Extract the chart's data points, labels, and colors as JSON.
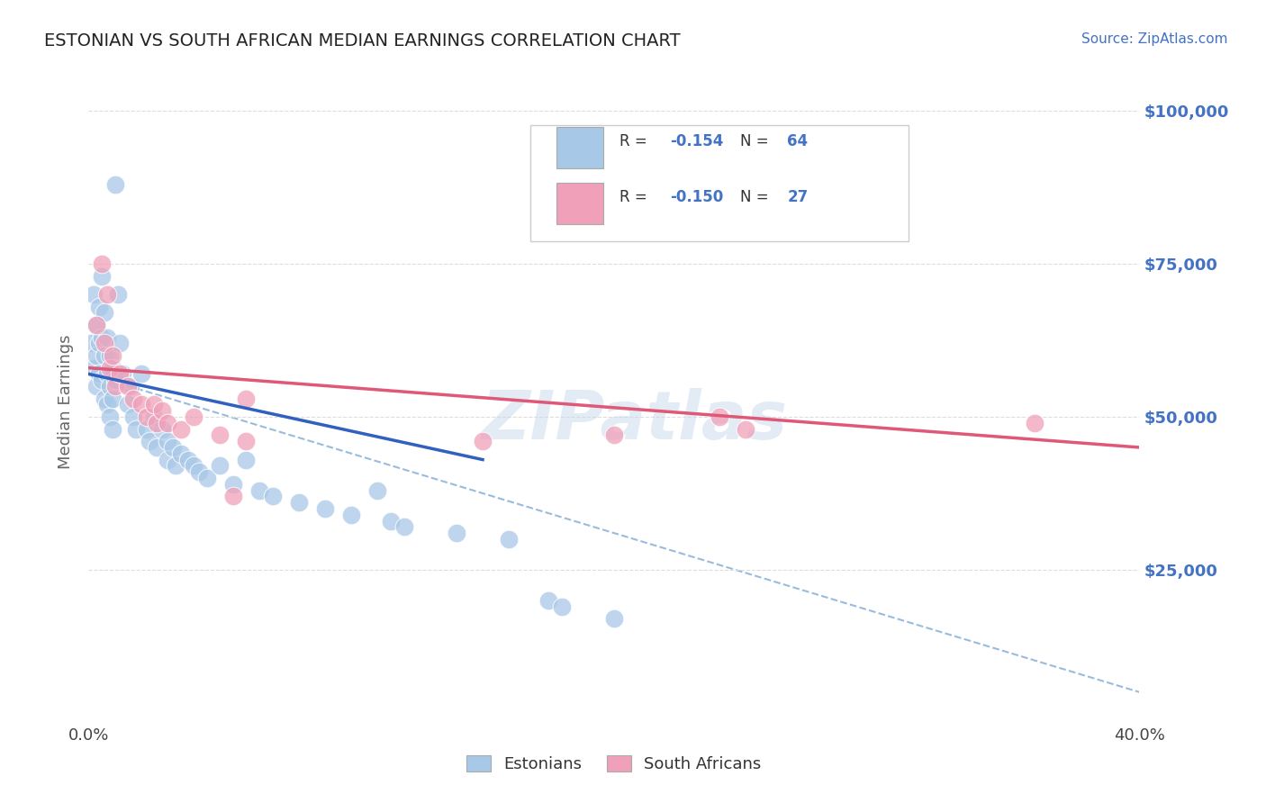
{
  "title": "ESTONIAN VS SOUTH AFRICAN MEDIAN EARNINGS CORRELATION CHART",
  "source": "Source: ZipAtlas.com",
  "ylabel": "Median Earnings",
  "xlim": [
    0.0,
    0.4
  ],
  "ylim": [
    0,
    105000
  ],
  "yticks": [
    0,
    25000,
    50000,
    75000,
    100000
  ],
  "ytick_labels": [
    "",
    "$25,000",
    "$50,000",
    "$75,000",
    "$100,000"
  ],
  "legend_R_blue": "R = -0.154",
  "legend_N_blue": "N = 64",
  "legend_R_pink": "R = -0.150",
  "legend_N_pink": "N = 27",
  "legend_label_blue": "Estonians",
  "legend_label_pink": "South Africans",
  "blue_color": "#A8C8E8",
  "pink_color": "#F0A0B8",
  "blue_line_color": "#3060C0",
  "pink_line_color": "#E05878",
  "dash_line_color": "#99BBDD",
  "background_color": "#FFFFFF",
  "title_color": "#222222",
  "axis_label_color": "#666666",
  "right_tick_color": "#4472C4",
  "blue_scatter": [
    [
      0.001,
      62000
    ],
    [
      0.002,
      58000
    ],
    [
      0.002,
      70000
    ],
    [
      0.003,
      65000
    ],
    [
      0.003,
      60000
    ],
    [
      0.003,
      55000
    ],
    [
      0.004,
      68000
    ],
    [
      0.004,
      62000
    ],
    [
      0.004,
      57000
    ],
    [
      0.005,
      73000
    ],
    [
      0.005,
      63000
    ],
    [
      0.005,
      56000
    ],
    [
      0.006,
      67000
    ],
    [
      0.006,
      60000
    ],
    [
      0.006,
      53000
    ],
    [
      0.007,
      63000
    ],
    [
      0.007,
      57000
    ],
    [
      0.007,
      52000
    ],
    [
      0.008,
      60000
    ],
    [
      0.008,
      55000
    ],
    [
      0.008,
      50000
    ],
    [
      0.009,
      58000
    ],
    [
      0.009,
      53000
    ],
    [
      0.009,
      48000
    ],
    [
      0.01,
      88000
    ],
    [
      0.01,
      56000
    ],
    [
      0.011,
      70000
    ],
    [
      0.012,
      62000
    ],
    [
      0.013,
      57000
    ],
    [
      0.015,
      52000
    ],
    [
      0.016,
      55000
    ],
    [
      0.017,
      50000
    ],
    [
      0.018,
      48000
    ],
    [
      0.02,
      57000
    ],
    [
      0.022,
      48000
    ],
    [
      0.023,
      46000
    ],
    [
      0.025,
      50000
    ],
    [
      0.026,
      45000
    ],
    [
      0.028,
      48000
    ],
    [
      0.03,
      46000
    ],
    [
      0.03,
      43000
    ],
    [
      0.032,
      45000
    ],
    [
      0.033,
      42000
    ],
    [
      0.035,
      44000
    ],
    [
      0.038,
      43000
    ],
    [
      0.04,
      42000
    ],
    [
      0.042,
      41000
    ],
    [
      0.045,
      40000
    ],
    [
      0.05,
      42000
    ],
    [
      0.055,
      39000
    ],
    [
      0.06,
      43000
    ],
    [
      0.065,
      38000
    ],
    [
      0.07,
      37000
    ],
    [
      0.08,
      36000
    ],
    [
      0.09,
      35000
    ],
    [
      0.1,
      34000
    ],
    [
      0.11,
      38000
    ],
    [
      0.115,
      33000
    ],
    [
      0.12,
      32000
    ],
    [
      0.14,
      31000
    ],
    [
      0.16,
      30000
    ],
    [
      0.175,
      20000
    ],
    [
      0.18,
      19000
    ],
    [
      0.2,
      17000
    ]
  ],
  "pink_scatter": [
    [
      0.003,
      65000
    ],
    [
      0.005,
      75000
    ],
    [
      0.006,
      62000
    ],
    [
      0.007,
      70000
    ],
    [
      0.008,
      58000
    ],
    [
      0.009,
      60000
    ],
    [
      0.01,
      55000
    ],
    [
      0.012,
      57000
    ],
    [
      0.015,
      55000
    ],
    [
      0.017,
      53000
    ],
    [
      0.02,
      52000
    ],
    [
      0.022,
      50000
    ],
    [
      0.025,
      52000
    ],
    [
      0.026,
      49000
    ],
    [
      0.028,
      51000
    ],
    [
      0.03,
      49000
    ],
    [
      0.035,
      48000
    ],
    [
      0.04,
      50000
    ],
    [
      0.05,
      47000
    ],
    [
      0.055,
      37000
    ],
    [
      0.06,
      53000
    ],
    [
      0.2,
      47000
    ],
    [
      0.24,
      50000
    ],
    [
      0.06,
      46000
    ],
    [
      0.15,
      46000
    ],
    [
      0.25,
      48000
    ],
    [
      0.36,
      49000
    ]
  ],
  "blue_trend_x": [
    0.0,
    0.15
  ],
  "blue_trend_y": [
    57000,
    43000
  ],
  "pink_trend_x": [
    0.0,
    0.4
  ],
  "pink_trend_y": [
    58000,
    45000
  ],
  "dash_trend_x": [
    0.0,
    0.4
  ],
  "dash_trend_y": [
    57000,
    5000
  ]
}
